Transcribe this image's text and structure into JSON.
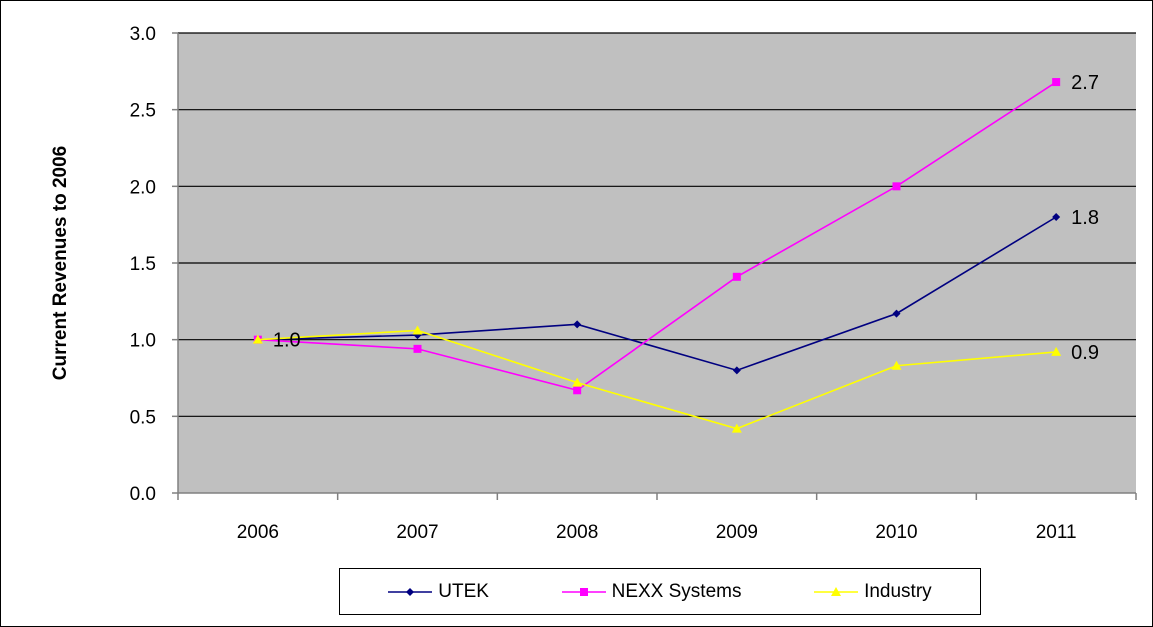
{
  "chart_data": {
    "type": "line",
    "title": "",
    "xlabel": "",
    "ylabel": "Current Revenues to 2006",
    "categories": [
      "2006",
      "2007",
      "2008",
      "2009",
      "2010",
      "2011"
    ],
    "ylim": [
      0,
      3.0
    ],
    "yticks": [
      0.0,
      0.5,
      1.0,
      1.5,
      2.0,
      2.5,
      3.0
    ],
    "ytick_labels": [
      "0.0",
      "0.5",
      "1.0",
      "1.5",
      "2.0",
      "2.5",
      "3.0"
    ],
    "grid": true,
    "plot_background": "#c0c0c0",
    "legend_position": "bottom",
    "series": [
      {
        "name": "UTEK",
        "color": "#000080",
        "marker": "diamond",
        "values": [
          1.0,
          1.03,
          1.1,
          0.8,
          1.17,
          1.8
        ]
      },
      {
        "name": "NEXX Systems",
        "color": "#ff00ff",
        "marker": "square",
        "values": [
          1.0,
          0.94,
          0.67,
          1.41,
          2.0,
          2.68
        ]
      },
      {
        "name": "Industry",
        "color": "#ffff00",
        "marker": "triangle",
        "values": [
          1.0,
          1.06,
          0.72,
          0.42,
          0.83,
          0.92
        ]
      }
    ],
    "annotations": [
      {
        "text": "1.0",
        "series": 1,
        "index": 0
      },
      {
        "text": "2.7",
        "series": 1,
        "index": 5
      },
      {
        "text": "1.8",
        "series": 0,
        "index": 5
      },
      {
        "text": "0.9",
        "series": 2,
        "index": 5
      }
    ]
  }
}
